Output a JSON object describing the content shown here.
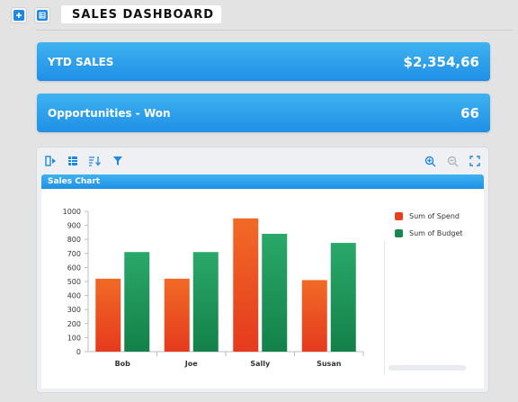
{
  "header": {
    "title": "SALES DASHBOARD",
    "add_icon": "plus-icon",
    "grid_icon": "table-icon"
  },
  "kpis": [
    {
      "label": "YTD SALES",
      "value": "$2,354,66"
    },
    {
      "label": "Opportunities - Won",
      "value": "66"
    }
  ],
  "panel": {
    "title": "Sales Chart",
    "toolbar_left_icons": [
      "toggle-panel-icon",
      "table-view-icon",
      "sort-icon",
      "filter-icon"
    ],
    "toolbar_right_icons": [
      "zoom-in-icon",
      "zoom-out-icon",
      "fullscreen-icon"
    ]
  },
  "colors": {
    "accent": "#1f90e6",
    "spend": "#ea4a1f",
    "budget": "#178a55"
  },
  "chart_data": {
    "type": "bar",
    "categories": [
      "Bob",
      "Joe",
      "Sally",
      "Susan"
    ],
    "series": [
      {
        "name": "Sum of Spend",
        "values": [
          520,
          520,
          950,
          510
        ]
      },
      {
        "name": "Sum of Budget",
        "values": [
          710,
          710,
          840,
          775
        ]
      }
    ],
    "ylim": [
      0,
      1000
    ],
    "yticks": [
      0,
      100,
      200,
      300,
      400,
      500,
      600,
      700,
      800,
      900,
      1000
    ],
    "legend_position": "right",
    "grid": false
  }
}
